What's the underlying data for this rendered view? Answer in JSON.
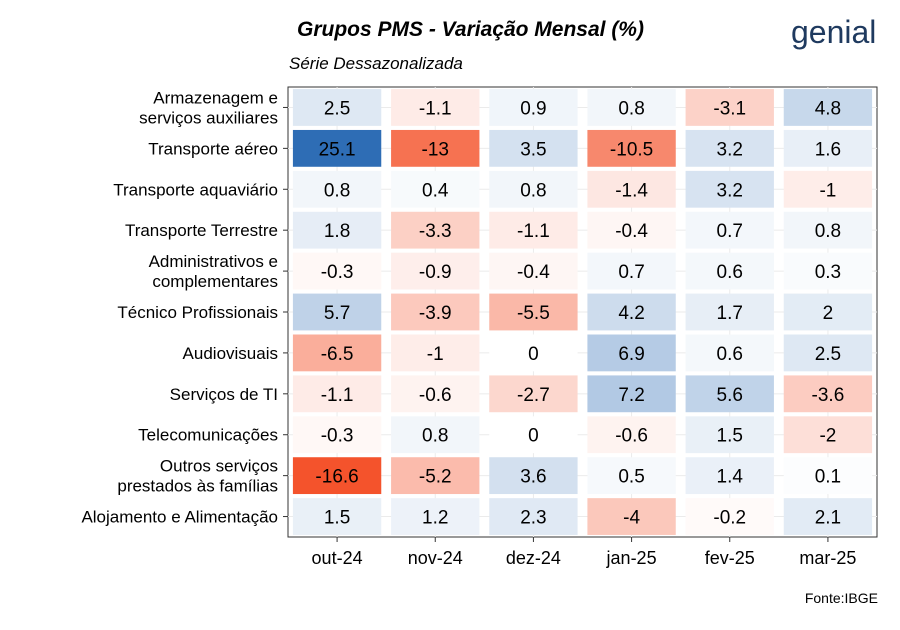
{
  "header": {
    "title": "Grupos PMS - Variação Mensal (%)",
    "subtitle": "Série Dessazonalizada",
    "logo_text": "genial",
    "source": "Fonte:IBGE"
  },
  "chart_data": {
    "type": "heatmap",
    "title": "Grupos PMS - Variação Mensal (%)",
    "subtitle": "Série Dessazonalizada",
    "xlabel": "",
    "ylabel": "",
    "grid": true,
    "x": [
      "out-24",
      "nov-24",
      "dez-24",
      "jan-25",
      "fev-25",
      "mar-25"
    ],
    "y": [
      [
        "Armazenagem e",
        "serviços auxiliares"
      ],
      [
        "Transporte aéreo"
      ],
      [
        "Transporte aquaviário"
      ],
      [
        "Transporte Terrestre"
      ],
      [
        "Administrativos e",
        "complementares"
      ],
      [
        "Técnico Profissionais"
      ],
      [
        "Audiovisuais"
      ],
      [
        "Serviços de TI"
      ],
      [
        "Telecomunicações"
      ],
      [
        "Outros serviços",
        "prestados às famílias"
      ],
      [
        "Alojamento e Alimentação"
      ]
    ],
    "values": [
      [
        2.5,
        -1.1,
        0.9,
        0.8,
        -3.1,
        4.8
      ],
      [
        25.1,
        -13,
        3.5,
        -10.5,
        3.2,
        1.6
      ],
      [
        0.8,
        0.4,
        0.8,
        -1.4,
        3.2,
        -1
      ],
      [
        1.8,
        -3.3,
        -1.1,
        -0.4,
        0.7,
        0.8
      ],
      [
        -0.3,
        -0.9,
        -0.4,
        0.7,
        0.6,
        0.3
      ],
      [
        5.7,
        -3.9,
        -5.5,
        4.2,
        1.7,
        2
      ],
      [
        -6.5,
        -1,
        0,
        6.9,
        0.6,
        2.5
      ],
      [
        -1.1,
        -0.6,
        -2.7,
        7.2,
        5.6,
        -3.6
      ],
      [
        -0.3,
        0.8,
        0,
        -0.6,
        1.5,
        -2
      ],
      [
        -16.6,
        -5.2,
        3.6,
        0.5,
        1.4,
        0.1
      ],
      [
        1.5,
        1.2,
        2.3,
        -4,
        -0.2,
        2.1
      ]
    ],
    "colors": {
      "positive_max": "#2e6db5",
      "negative_max": "#f4532c",
      "neutral": "#ffffff"
    }
  }
}
